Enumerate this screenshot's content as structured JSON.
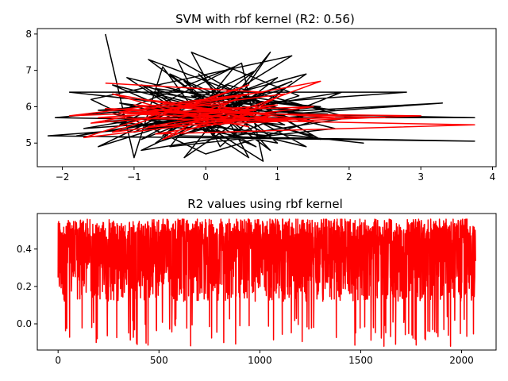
{
  "chart_data": [
    {
      "type": "line",
      "title": "SVM with rbf kernel (R2: 0.56)",
      "xlabel": "",
      "ylabel": "",
      "xlim": [
        -2.35,
        4.05
      ],
      "ylim": [
        4.35,
        8.15
      ],
      "x_ticks": [
        -2,
        -1,
        0,
        1,
        2,
        3,
        4
      ],
      "y_ticks": [
        5,
        6,
        7,
        8
      ],
      "grid": false,
      "series": [
        {
          "color": "#000000",
          "points": [
            [
              -1.4,
              8.0
            ],
            [
              -1.0,
              4.6
            ],
            [
              -0.6,
              7.1
            ],
            [
              0.1,
              5.2
            ],
            [
              0.9,
              7.5
            ],
            [
              -0.3,
              4.6
            ],
            [
              1.4,
              6.9
            ],
            [
              -1.2,
              5.5
            ],
            [
              0.5,
              7.2
            ],
            [
              0.8,
              4.5
            ],
            [
              -0.9,
              6.6
            ],
            [
              1.6,
              5.1
            ],
            [
              -0.4,
              7.3
            ],
            [
              0.2,
              4.9
            ],
            [
              1.1,
              6.5
            ],
            [
              -1.5,
              4.9
            ],
            [
              0.7,
              7.0
            ],
            [
              -0.7,
              5.0
            ],
            [
              1.3,
              6.3
            ],
            [
              -0.2,
              7.5
            ],
            [
              0.6,
              4.6
            ],
            [
              -1.1,
              6.8
            ],
            [
              1.8,
              5.4
            ],
            [
              -0.5,
              4.9
            ],
            [
              0.4,
              7.1
            ],
            [
              -1.3,
              5.8
            ],
            [
              1.0,
              5.0
            ],
            [
              -0.1,
              6.9
            ],
            [
              0.9,
              4.8
            ],
            [
              -0.8,
              7.3
            ],
            [
              1.5,
              5.6
            ],
            [
              0.0,
              4.7
            ],
            [
              -1.6,
              6.2
            ],
            [
              1.2,
              7.4
            ],
            [
              -0.6,
              5.2
            ],
            [
              0.3,
              6.6
            ],
            [
              2.0,
              5.7
            ],
            [
              -0.9,
              4.8
            ],
            [
              0.6,
              6.2
            ],
            [
              -2.1,
              5.7
            ],
            [
              0.8,
              5.6
            ],
            [
              -1.2,
              6.1
            ],
            [
              1.4,
              4.9
            ],
            [
              -0.3,
              6.7
            ],
            [
              0.5,
              5.3
            ],
            [
              1.9,
              6.4
            ],
            [
              -1.8,
              5.2
            ],
            [
              0.2,
              5.8
            ],
            [
              -0.5,
              6.9
            ],
            [
              1.1,
              5.5
            ],
            [
              -1.0,
              5.9
            ],
            [
              0.7,
              6.1
            ],
            [
              2.8,
              6.4
            ],
            [
              -1.9,
              6.4
            ],
            [
              0.4,
              5.9
            ],
            [
              -0.7,
              5.5
            ],
            [
              1.6,
              6.0
            ],
            [
              -0.2,
              6.3
            ],
            [
              0.9,
              5.2
            ],
            [
              -1.4,
              5.6
            ],
            [
              3.3,
              6.1
            ],
            [
              -1.7,
              5.4
            ],
            [
              0.1,
              6.0
            ],
            [
              1.3,
              5.9
            ],
            [
              -0.8,
              6.4
            ],
            [
              0.6,
              5.7
            ],
            [
              -0.4,
              5.2
            ],
            [
              3.75,
              5.05
            ],
            [
              -2.2,
              5.2
            ],
            [
              0.5,
              5.6
            ],
            [
              1.7,
              5.8
            ],
            [
              -0.6,
              6.0
            ],
            [
              0.3,
              5.4
            ],
            [
              2.2,
              5.0
            ],
            [
              -1.1,
              5.7
            ],
            [
              3.75,
              5.7
            ],
            [
              -1.5,
              5.9
            ],
            [
              0.8,
              6.3
            ],
            [
              -0.1,
              5.6
            ],
            [
              1.2,
              6.7
            ],
            [
              -0.9,
              5.1
            ],
            [
              0.4,
              6.5
            ],
            [
              1.5,
              5.2
            ],
            [
              -1.3,
              6.6
            ],
            [
              0.7,
              4.9
            ],
            [
              -0.2,
              5.9
            ],
            [
              1.0,
              6.8
            ],
            [
              0.0,
              5.3
            ],
            [
              -0.7,
              6.5
            ],
            [
              1.8,
              5.9
            ],
            [
              0.2,
              6.4
            ],
            [
              -1.0,
              5.3
            ],
            [
              0.9,
              6.0
            ]
          ]
        },
        {
          "color": "#ff0000",
          "points": [
            [
              -1.4,
              6.65
            ],
            [
              0.8,
              6.4
            ],
            [
              -1.9,
              5.75
            ],
            [
              1.5,
              6.0
            ],
            [
              -1.3,
              5.3
            ],
            [
              0.6,
              6.6
            ],
            [
              -1.7,
              5.15
            ],
            [
              0.9,
              5.75
            ],
            [
              -0.7,
              5.25
            ],
            [
              3.75,
              5.5
            ],
            [
              -1.5,
              5.7
            ],
            [
              1.0,
              6.05
            ],
            [
              -0.8,
              5.45
            ],
            [
              3.0,
              5.75
            ],
            [
              -1.2,
              5.85
            ],
            [
              0.5,
              6.3
            ],
            [
              -0.6,
              5.1
            ],
            [
              1.6,
              6.7
            ],
            [
              -1.6,
              5.55
            ],
            [
              0.7,
              5.9
            ],
            [
              -0.9,
              6.2
            ],
            [
              1.2,
              5.6
            ],
            [
              -1.4,
              5.95
            ],
            [
              2.5,
              5.7
            ],
            [
              -0.4,
              5.65
            ],
            [
              0.3,
              6.1
            ],
            [
              -1.1,
              5.8
            ],
            [
              1.4,
              5.65
            ],
            [
              -0.2,
              6.0
            ],
            [
              0.85,
              5.6
            ],
            [
              -1.3,
              6.35
            ],
            [
              0.2,
              5.5
            ],
            [
              1.1,
              6.35
            ],
            [
              -0.5,
              5.95
            ],
            [
              0.6,
              5.45
            ],
            [
              -1.0,
              6.05
            ],
            [
              1.8,
              5.7
            ],
            [
              -0.3,
              5.55
            ],
            [
              0.4,
              5.85
            ]
          ]
        }
      ]
    },
    {
      "type": "line",
      "title": "R2 values using rbf kernel",
      "xlabel": "",
      "ylabel": "",
      "xlim": [
        -103,
        2171
      ],
      "ylim": [
        -0.14,
        0.59
      ],
      "x_ticks": [
        0,
        500,
        1000,
        1500,
        2000
      ],
      "y_ticks": [
        0.0,
        0.2,
        0.4
      ],
      "grid": false,
      "n_points": 2070,
      "y_range": [
        -0.12,
        0.56
      ],
      "series": [
        {
          "color": "#ff0000"
        }
      ]
    }
  ]
}
